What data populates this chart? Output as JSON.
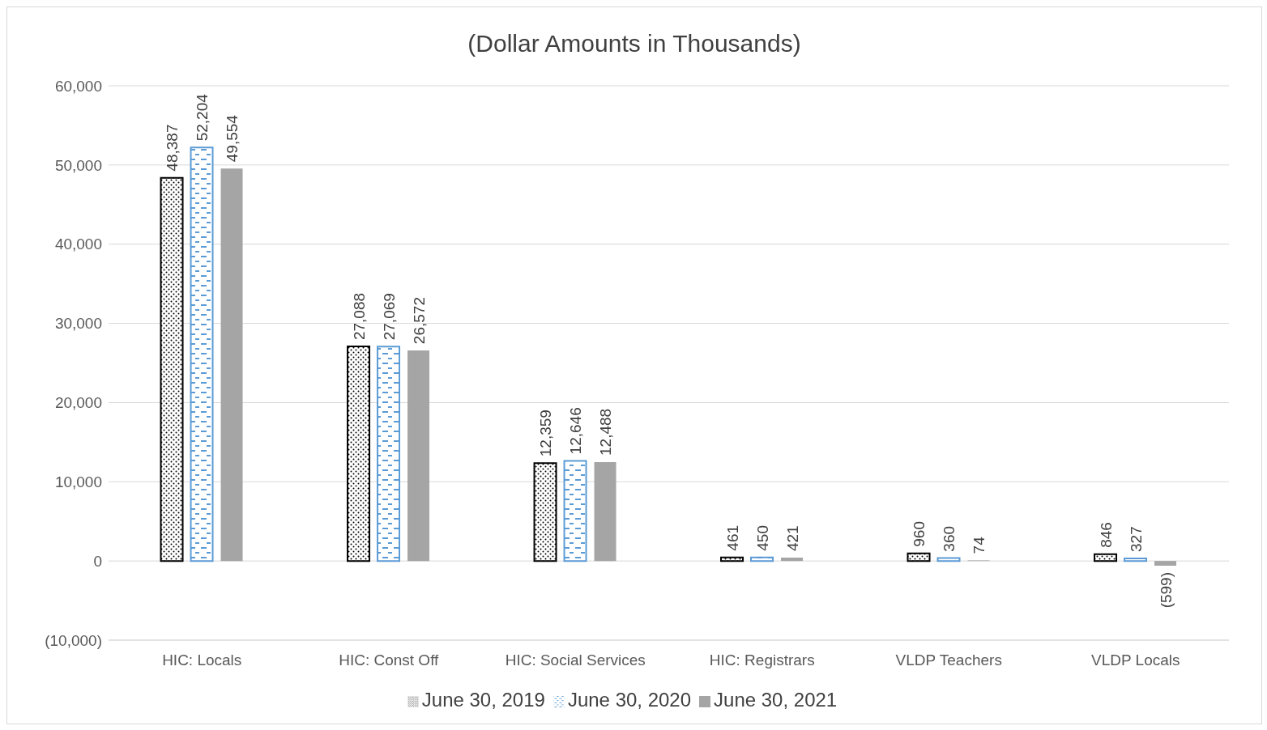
{
  "chart_data": {
    "type": "bar",
    "title": "(Dollar Amounts in Thousands)",
    "categories": [
      "HIC: Locals",
      "HIC: Const Off",
      "HIC: Social Services",
      "HIC: Registrars",
      "VLDP Teachers",
      "VLDP Locals"
    ],
    "series": [
      {
        "name": "June 30, 2019",
        "color": "#000000",
        "values": [
          48387,
          27088,
          12359,
          461,
          960,
          846
        ],
        "value_labels": [
          "48,387",
          "27,088",
          "12,359",
          "461",
          "960",
          "846"
        ]
      },
      {
        "name": "June 30, 2020",
        "color": "#5b9bd5",
        "values": [
          52204,
          27069,
          12646,
          450,
          360,
          327
        ],
        "value_labels": [
          "52,204",
          "27,069",
          "12,646",
          "450",
          "360",
          "327"
        ]
      },
      {
        "name": "June 30, 2021",
        "color": "#a5a5a5",
        "values": [
          49554,
          26572,
          12488,
          421,
          74,
          -599
        ],
        "value_labels": [
          "49,554",
          "26,572",
          "12,488",
          "421",
          "74",
          "(599)"
        ]
      }
    ],
    "ylim": [
      -10000,
      60000
    ],
    "yticks": [
      {
        "value": -10000,
        "label": "(10,000)"
      },
      {
        "value": 0,
        "label": "0"
      },
      {
        "value": 10000,
        "label": "10,000"
      },
      {
        "value": 20000,
        "label": "20,000"
      },
      {
        "value": 30000,
        "label": "30,000"
      },
      {
        "value": 40000,
        "label": "40,000"
      },
      {
        "value": 50000,
        "label": "50,000"
      },
      {
        "value": 60000,
        "label": "60,000"
      }
    ],
    "grid": "y",
    "legend": "bottom"
  }
}
